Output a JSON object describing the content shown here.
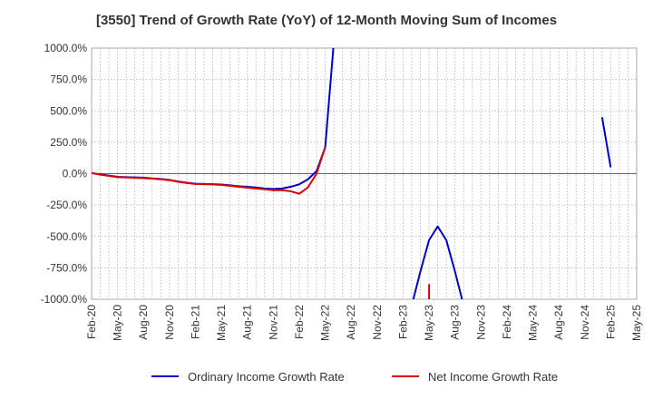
{
  "chart_data": {
    "type": "line",
    "title": "[3550]  Trend of Growth Rate (YoY) of 12-Month Moving Sum of Incomes",
    "xlabel": "",
    "ylabel": "",
    "ylim": [
      -1000,
      1000
    ],
    "yticks": [
      "1000.0%",
      "750.0%",
      "500.0%",
      "250.0%",
      "0.0%",
      "-250.0%",
      "-500.0%",
      "-750.0%",
      "-1000.0%"
    ],
    "ytick_values": [
      1000,
      750,
      500,
      250,
      0,
      -250,
      -500,
      -750,
      -1000
    ],
    "xticks": [
      "Feb-20",
      "May-20",
      "Aug-20",
      "Nov-20",
      "Feb-21",
      "May-21",
      "Aug-21",
      "Nov-21",
      "Feb-22",
      "May-22",
      "Aug-22",
      "Nov-22",
      "Feb-23",
      "May-23",
      "Aug-23",
      "Nov-23",
      "Feb-24",
      "May-24",
      "Aug-24",
      "Nov-24",
      "Feb-25",
      "May-25"
    ],
    "grid": true,
    "legend_position": "bottom",
    "series": [
      {
        "name": "Ordinary Income Growth Rate",
        "color": "#0000cc",
        "points": [
          [
            "Feb-20",
            5
          ],
          [
            "Mar-20",
            -5
          ],
          [
            "Apr-20",
            -15
          ],
          [
            "May-20",
            -25
          ],
          [
            "Jun-20",
            -28
          ],
          [
            "Jul-20",
            -30
          ],
          [
            "Aug-20",
            -32
          ],
          [
            "Sep-20",
            -38
          ],
          [
            "Oct-20",
            -42
          ],
          [
            "Nov-20",
            -50
          ],
          [
            "Dec-20",
            -62
          ],
          [
            "Jan-21",
            -72
          ],
          [
            "Feb-21",
            -80
          ],
          [
            "Mar-21",
            -82
          ],
          [
            "Apr-21",
            -84
          ],
          [
            "May-21",
            -87
          ],
          [
            "Jun-21",
            -93
          ],
          [
            "Jul-21",
            -100
          ],
          [
            "Aug-21",
            -105
          ],
          [
            "Sep-21",
            -110
          ],
          [
            "Oct-21",
            -118
          ],
          [
            "Nov-21",
            -122
          ],
          [
            "Dec-21",
            -118
          ],
          [
            "Jan-22",
            -105
          ],
          [
            "Feb-22",
            -85
          ],
          [
            "Mar-22",
            -45
          ],
          [
            "Apr-22",
            20
          ],
          [
            "May-22",
            210
          ],
          [
            "Jun-22",
            1050
          ],
          [
            "Jul-22",
            null
          ],
          [
            "Aug-22",
            null
          ],
          [
            "Sep-22",
            null
          ],
          [
            "Oct-22",
            null
          ],
          [
            "Nov-22",
            null
          ],
          [
            "Dec-22",
            null
          ],
          [
            "Jan-23",
            null
          ],
          [
            "Feb-23",
            null
          ],
          [
            "Mar-23",
            -1050
          ],
          [
            "Apr-23",
            -780
          ],
          [
            "May-23",
            -530
          ],
          [
            "Jun-23",
            -420
          ],
          [
            "Jul-23",
            -530
          ],
          [
            "Aug-23",
            -780
          ],
          [
            "Sep-23",
            -1050
          ],
          [
            "Oct-23",
            null
          ],
          [
            "Nov-23",
            null
          ],
          [
            "Dec-23",
            null
          ],
          [
            "Jan-24",
            null
          ],
          [
            "Feb-24",
            null
          ],
          [
            "Mar-24",
            null
          ],
          [
            "Apr-24",
            null
          ],
          [
            "May-24",
            null
          ],
          [
            "Jun-24",
            null
          ],
          [
            "Jul-24",
            null
          ],
          [
            "Aug-24",
            null
          ],
          [
            "Sep-24",
            null
          ],
          [
            "Oct-24",
            null
          ],
          [
            "Nov-24",
            null
          ],
          [
            "Dec-24",
            null
          ],
          [
            "Jan-25",
            450
          ],
          [
            "Feb-25",
            50
          ]
        ]
      },
      {
        "name": "Net Income Growth Rate",
        "color": "#dd0000",
        "points": [
          [
            "Feb-20",
            5
          ],
          [
            "Mar-20",
            -8
          ],
          [
            "Apr-20",
            -18
          ],
          [
            "May-20",
            -28
          ],
          [
            "Jun-20",
            -30
          ],
          [
            "Jul-20",
            -33
          ],
          [
            "Aug-20",
            -35
          ],
          [
            "Sep-20",
            -40
          ],
          [
            "Oct-20",
            -45
          ],
          [
            "Nov-20",
            -52
          ],
          [
            "Dec-20",
            -65
          ],
          [
            "Jan-21",
            -75
          ],
          [
            "Feb-21",
            -82
          ],
          [
            "Mar-21",
            -84
          ],
          [
            "Apr-21",
            -86
          ],
          [
            "May-21",
            -90
          ],
          [
            "Jun-21",
            -97
          ],
          [
            "Jul-21",
            -105
          ],
          [
            "Aug-21",
            -112
          ],
          [
            "Sep-21",
            -118
          ],
          [
            "Oct-21",
            -125
          ],
          [
            "Nov-21",
            -132
          ],
          [
            "Dec-21",
            -132
          ],
          [
            "Jan-22",
            -140
          ],
          [
            "Feb-22",
            -160
          ],
          [
            "Mar-22",
            -110
          ],
          [
            "Apr-22",
            0
          ],
          [
            "May-22",
            210
          ],
          [
            "Jun-22",
            null
          ],
          [
            "Jul-22",
            null
          ],
          [
            "Aug-22",
            null
          ],
          [
            "Sep-22",
            null
          ],
          [
            "Oct-22",
            null
          ],
          [
            "Nov-22",
            null
          ],
          [
            "Dec-22",
            null
          ],
          [
            "Jan-23",
            null
          ],
          [
            "Feb-23",
            null
          ],
          [
            "Mar-23",
            null
          ],
          [
            "Apr-23",
            null
          ],
          [
            "May-23",
            -1050
          ],
          [
            "May-23+",
            -880
          ]
        ]
      }
    ]
  }
}
